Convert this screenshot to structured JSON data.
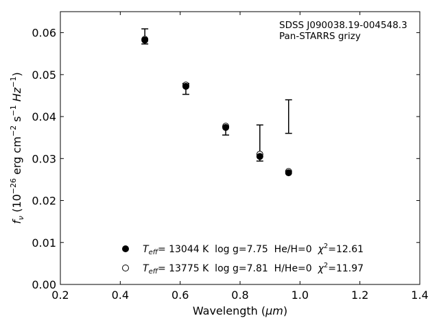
{
  "chart_data": {
    "type": "scatter",
    "annotation": [
      "SDSS J090038.19-004548.3",
      "Pan-STARRS grizy"
    ],
    "xlabel": "Wavelength",
    "xlabel_unit": "μm",
    "ylabel_parts": {
      "base": "f",
      "sub": "ν",
      "pre_exp": "(10",
      "exp1": "−26",
      "units_mid": " erg cm",
      "exp2": "−2",
      "units_s": " s",
      "exp3": "−1",
      "units_hz": " Hz",
      "exp4": "−1",
      "close": ")"
    },
    "xlim": [
      0.2,
      1.4
    ],
    "ylim": [
      0.0,
      0.065
    ],
    "x_ticks": [
      0.2,
      0.4,
      0.6,
      0.8,
      1.0,
      1.2,
      1.4
    ],
    "x_tick_labels": [
      "0.2",
      "0.4",
      "0.6",
      "0.8",
      "1.0",
      "1.2",
      "1.4"
    ],
    "y_ticks": [
      0.0,
      0.01,
      0.02,
      0.03,
      0.04,
      0.05,
      0.06
    ],
    "y_tick_labels": [
      "0.00",
      "0.01",
      "0.02",
      "0.03",
      "0.04",
      "0.05",
      "0.06"
    ],
    "grid": false,
    "legend_placement": "bottom-center",
    "observed": {
      "x": [
        0.482,
        0.619,
        0.752,
        0.866,
        0.962
      ],
      "y": [
        0.0591,
        0.0466,
        0.0366,
        0.0337,
        0.04
      ],
      "err": [
        0.0018,
        0.0013,
        0.001,
        0.0043,
        0.004
      ]
    },
    "series": [
      {
        "marker": "filled-circle",
        "x": [
          0.482,
          0.619,
          0.752,
          0.866,
          0.962
        ],
        "y": [
          0.0582,
          0.0472,
          0.0374,
          0.0305,
          0.0266
        ],
        "legend": {
          "teff_label": "T",
          "teff_sub": "eff",
          "text1": "= 13044 K  log g=7.75  He/H=0  ",
          "chi_symbol": "χ",
          "chi_exp": "2",
          "chi_value": "=12.61"
        }
      },
      {
        "marker": "open-circle",
        "x": [
          0.482,
          0.619,
          0.752,
          0.866,
          0.962
        ],
        "y": [
          0.0584,
          0.0475,
          0.0377,
          0.031,
          0.0269
        ],
        "legend": {
          "teff_label": "T",
          "teff_sub": "eff",
          "text1": "= 13775 K  log g=7.81  H/He=0  ",
          "chi_symbol": "χ",
          "chi_exp": "2",
          "chi_value": "=11.97"
        }
      }
    ]
  }
}
